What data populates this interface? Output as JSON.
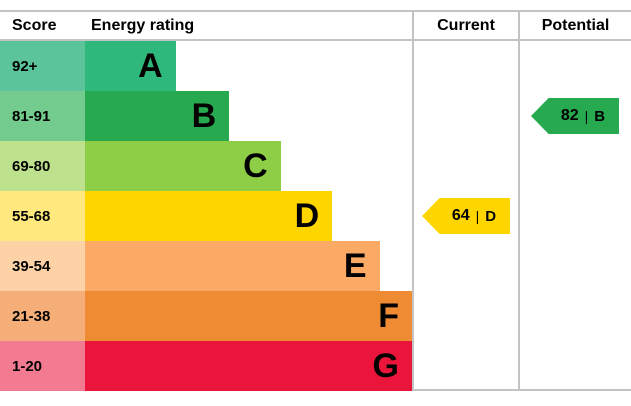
{
  "header": {
    "score": "Score",
    "energy_rating": "Energy rating",
    "current": "Current",
    "potential": "Potential"
  },
  "chart_data": {
    "type": "bar",
    "subtype": "epc-energy-rating",
    "title": "Energy rating",
    "bands": [
      {
        "score_range": "92+",
        "letter": "A",
        "bar_color": "#2fb87c",
        "score_cell_color": "#5cc49a",
        "bar_width_pct": 22
      },
      {
        "score_range": "81-91",
        "letter": "B",
        "bar_color": "#27a94f",
        "score_cell_color": "#73cc8e",
        "bar_width_pct": 35
      },
      {
        "score_range": "69-80",
        "letter": "C",
        "bar_color": "#8dce46",
        "score_cell_color": "#bde18c",
        "bar_width_pct": 47.5
      },
      {
        "score_range": "55-68",
        "letter": "D",
        "bar_color": "#ffd500",
        "score_cell_color": "#ffe87d",
        "bar_width_pct": 60
      },
      {
        "score_range": "39-54",
        "letter": "E",
        "bar_color": "#fbaa65",
        "score_cell_color": "#fcd2a6",
        "bar_width_pct": 71.5
      },
      {
        "score_range": "21-38",
        "letter": "F",
        "bar_color": "#ef8b33",
        "score_cell_color": "#f5ae77",
        "bar_width_pct": 83
      },
      {
        "score_range": "1-20",
        "letter": "G",
        "bar_color": "#e9153b",
        "score_cell_color": "#f27b91",
        "bar_width_pct": 95
      }
    ],
    "current": {
      "value": "64",
      "divider": "|",
      "letter": "D",
      "color": "#ffd500"
    },
    "potential": {
      "value": "82",
      "divider": "|",
      "letter": "B",
      "color": "#27a94f"
    }
  }
}
